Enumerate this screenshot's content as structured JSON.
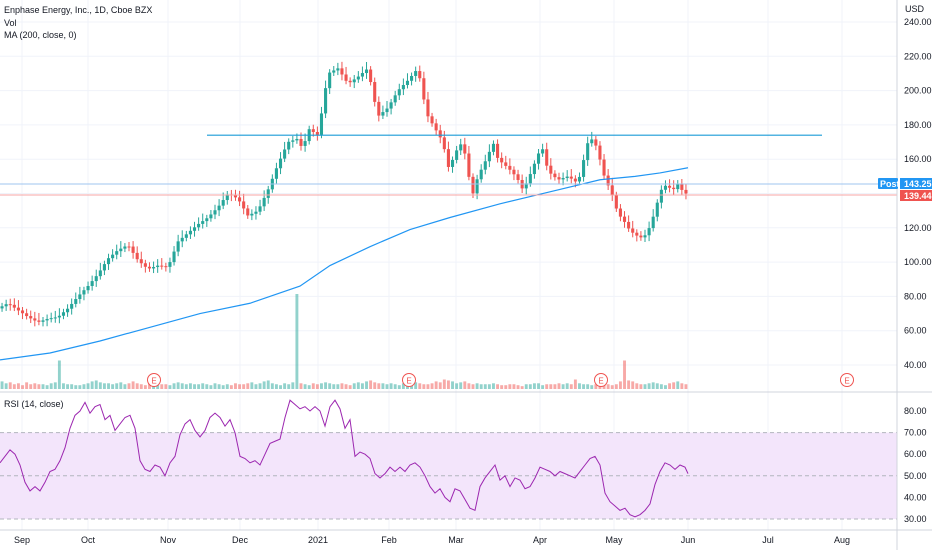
{
  "legend": {
    "title": "Enphase Energy, Inc., 1D, Cboe BZX",
    "vol": "Vol",
    "ma": "MA (200, close, 0)"
  },
  "rsi_legend": "RSI (14, close)",
  "currency": "USD",
  "colors": {
    "up": "#26a69a",
    "down": "#ef5350",
    "ma": "#2196f3",
    "hline": "#1a9bd7",
    "rsi_line": "#9c27b0",
    "rsi_band": "#f3e5fb",
    "post_tag": "#2196f3",
    "close_tag": "#ef5350",
    "earn": "#ef5350"
  },
  "labels": {
    "post_tag": "Post",
    "post_value": "143.25",
    "close_value": "139.44",
    "earnings_marker": "E"
  },
  "chart_data": {
    "type": "candlestick",
    "price_axis": {
      "ticks": [
        "240.00",
        "220.00",
        "200.00",
        "180.00",
        "160.00",
        "140.00",
        "120.00",
        "100.00",
        "80.00",
        "60.00",
        "40.00"
      ],
      "ylim": [
        30,
        245
      ]
    },
    "rsi_axis": {
      "ticks": [
        "80.00",
        "70.00",
        "60.00",
        "50.00",
        "40.00",
        "30.00"
      ],
      "ylim": [
        24,
        88
      ],
      "band": [
        30,
        70
      ]
    },
    "time_axis": [
      "Sep",
      "Oct",
      "Nov",
      "Dec",
      "2021",
      "Feb",
      "Mar",
      "Apr",
      "May",
      "Jun",
      "Jul",
      "Aug"
    ],
    "horizontal_line": 174,
    "last_post": 143.25,
    "last_close": 139.44,
    "ma200_approx": [
      [
        0,
        43
      ],
      [
        50,
        47
      ],
      [
        100,
        54
      ],
      [
        150,
        62
      ],
      [
        200,
        70
      ],
      [
        250,
        76
      ],
      [
        300,
        86
      ],
      [
        330,
        98
      ],
      [
        370,
        109
      ],
      [
        410,
        119
      ],
      [
        450,
        126
      ],
      [
        500,
        134
      ],
      [
        550,
        141
      ],
      [
        600,
        148
      ],
      [
        635,
        150
      ],
      [
        660,
        152
      ],
      [
        688,
        155
      ]
    ],
    "closes_approx": [
      [
        0,
        73
      ],
      [
        10,
        76
      ],
      [
        20,
        72
      ],
      [
        30,
        68
      ],
      [
        40,
        65
      ],
      [
        50,
        67
      ],
      [
        60,
        68
      ],
      [
        70,
        73
      ],
      [
        80,
        80
      ],
      [
        90,
        86
      ],
      [
        100,
        93
      ],
      [
        110,
        102
      ],
      [
        120,
        107
      ],
      [
        130,
        110
      ],
      [
        140,
        101
      ],
      [
        150,
        96
      ],
      [
        160,
        98
      ],
      [
        170,
        97
      ],
      [
        180,
        112
      ],
      [
        190,
        117
      ],
      [
        200,
        122
      ],
      [
        210,
        126
      ],
      [
        220,
        132
      ],
      [
        230,
        140
      ],
      [
        240,
        137
      ],
      [
        250,
        127
      ],
      [
        260,
        130
      ],
      [
        270,
        142
      ],
      [
        280,
        157
      ],
      [
        290,
        170
      ],
      [
        300,
        172
      ],
      [
        305,
        165
      ],
      [
        310,
        178
      ],
      [
        320,
        174
      ],
      [
        330,
        210
      ],
      [
        340,
        213
      ],
      [
        350,
        204
      ],
      [
        360,
        208
      ],
      [
        370,
        213
      ],
      [
        375,
        198
      ],
      [
        380,
        185
      ],
      [
        390,
        190
      ],
      [
        400,
        200
      ],
      [
        410,
        206
      ],
      [
        420,
        213
      ],
      [
        425,
        197
      ],
      [
        430,
        185
      ],
      [
        440,
        175
      ],
      [
        445,
        170
      ],
      [
        450,
        155
      ],
      [
        455,
        160
      ],
      [
        460,
        167
      ],
      [
        465,
        170
      ],
      [
        470,
        152
      ],
      [
        475,
        140
      ],
      [
        480,
        150
      ],
      [
        490,
        162
      ],
      [
        495,
        170
      ],
      [
        500,
        160
      ],
      [
        510,
        155
      ],
      [
        515,
        152
      ],
      [
        520,
        148
      ],
      [
        525,
        142
      ],
      [
        530,
        148
      ],
      [
        535,
        155
      ],
      [
        540,
        163
      ],
      [
        545,
        166
      ],
      [
        550,
        153
      ],
      [
        560,
        148
      ],
      [
        570,
        150
      ],
      [
        575,
        148
      ],
      [
        580,
        146
      ],
      [
        585,
        158
      ],
      [
        590,
        170
      ],
      [
        595,
        172
      ],
      [
        600,
        165
      ],
      [
        605,
        152
      ],
      [
        610,
        145
      ],
      [
        615,
        138
      ],
      [
        620,
        128
      ],
      [
        625,
        125
      ],
      [
        630,
        120
      ],
      [
        635,
        117
      ],
      [
        640,
        115
      ],
      [
        645,
        114
      ],
      [
        650,
        118
      ],
      [
        655,
        126
      ],
      [
        660,
        136
      ],
      [
        665,
        145
      ],
      [
        670,
        144
      ],
      [
        675,
        142
      ],
      [
        680,
        146
      ],
      [
        685,
        141
      ],
      [
        688,
        140
      ]
    ],
    "volume_approx_pct": [
      8,
      6,
      7,
      5,
      6,
      4,
      7,
      5,
      6,
      5,
      5,
      4,
      6,
      7,
      30,
      6,
      5,
      5,
      4,
      4,
      5,
      6,
      8,
      9,
      7,
      6,
      6,
      5,
      6,
      7,
      5,
      6,
      8,
      6,
      5,
      4,
      6,
      7,
      6,
      5,
      5,
      4,
      6,
      7,
      6,
      5,
      6,
      5,
      5,
      6,
      5,
      4,
      6,
      5,
      4,
      5,
      4,
      6,
      5,
      5,
      6,
      7,
      5,
      6,
      8,
      9,
      6,
      5,
      4,
      6,
      5,
      7,
      100,
      6,
      5,
      4,
      6,
      5,
      6,
      7,
      6,
      5,
      5,
      6,
      5,
      4,
      6,
      7,
      6,
      8,
      9,
      7,
      6,
      6,
      5,
      6,
      5,
      4,
      6,
      4,
      5,
      7,
      6,
      5,
      5,
      6,
      8,
      7,
      10,
      9,
      8,
      6,
      7,
      8,
      6,
      5,
      6,
      5,
      5,
      5,
      6,
      5,
      4,
      4,
      5,
      5,
      4,
      3,
      5,
      5,
      6,
      6,
      4,
      5,
      5,
      5,
      6,
      5,
      6,
      5,
      10,
      6,
      5,
      5,
      4,
      5,
      4,
      5,
      5,
      4,
      5,
      8,
      30,
      9,
      8,
      6,
      5,
      5,
      6,
      7,
      6,
      5,
      4,
      6,
      7,
      8,
      6,
      5
    ],
    "rsi_approx": [
      [
        0,
        56
      ],
      [
        5,
        59
      ],
      [
        10,
        62
      ],
      [
        15,
        60
      ],
      [
        20,
        55
      ],
      [
        25,
        47
      ],
      [
        30,
        43
      ],
      [
        35,
        45
      ],
      [
        40,
        43
      ],
      [
        45,
        47
      ],
      [
        50,
        52
      ],
      [
        55,
        53
      ],
      [
        60,
        57
      ],
      [
        65,
        63
      ],
      [
        70,
        72
      ],
      [
        75,
        78
      ],
      [
        80,
        80
      ],
      [
        85,
        84
      ],
      [
        90,
        79
      ],
      [
        95,
        82
      ],
      [
        100,
        83
      ],
      [
        105,
        76
      ],
      [
        110,
        78
      ],
      [
        115,
        71
      ],
      [
        120,
        74
      ],
      [
        125,
        77
      ],
      [
        130,
        78
      ],
      [
        135,
        72
      ],
      [
        140,
        57
      ],
      [
        145,
        53
      ],
      [
        150,
        52
      ],
      [
        155,
        55
      ],
      [
        160,
        54
      ],
      [
        165,
        50
      ],
      [
        170,
        56
      ],
      [
        175,
        59
      ],
      [
        180,
        69
      ],
      [
        185,
        74
      ],
      [
        190,
        76
      ],
      [
        195,
        71
      ],
      [
        200,
        68
      ],
      [
        205,
        71
      ],
      [
        210,
        77
      ],
      [
        215,
        79
      ],
      [
        220,
        77
      ],
      [
        225,
        73
      ],
      [
        230,
        76
      ],
      [
        235,
        70
      ],
      [
        240,
        59
      ],
      [
        245,
        58
      ],
      [
        250,
        56
      ],
      [
        255,
        57
      ],
      [
        260,
        55
      ],
      [
        265,
        60
      ],
      [
        270,
        65
      ],
      [
        275,
        66
      ],
      [
        280,
        67
      ],
      [
        285,
        77
      ],
      [
        290,
        85
      ],
      [
        295,
        83
      ],
      [
        300,
        81
      ],
      [
        305,
        82
      ],
      [
        310,
        80
      ],
      [
        315,
        82
      ],
      [
        320,
        80
      ],
      [
        325,
        73
      ],
      [
        330,
        82
      ],
      [
        335,
        85
      ],
      [
        340,
        81
      ],
      [
        345,
        72
      ],
      [
        350,
        76
      ],
      [
        355,
        59
      ],
      [
        360,
        61
      ],
      [
        365,
        60
      ],
      [
        370,
        58
      ],
      [
        375,
        51
      ],
      [
        380,
        49
      ],
      [
        385,
        51
      ],
      [
        390,
        54
      ],
      [
        395,
        52
      ],
      [
        400,
        54
      ],
      [
        405,
        52
      ],
      [
        410,
        55
      ],
      [
        415,
        56
      ],
      [
        420,
        54
      ],
      [
        425,
        50
      ],
      [
        430,
        45
      ],
      [
        435,
        42
      ],
      [
        440,
        44
      ],
      [
        445,
        40
      ],
      [
        450,
        38
      ],
      [
        455,
        44
      ],
      [
        460,
        43
      ],
      [
        465,
        39
      ],
      [
        470,
        35
      ],
      [
        475,
        34
      ],
      [
        480,
        45
      ],
      [
        485,
        49
      ],
      [
        490,
        52
      ],
      [
        495,
        55
      ],
      [
        500,
        48
      ],
      [
        505,
        50
      ],
      [
        510,
        45
      ],
      [
        515,
        49
      ],
      [
        520,
        48
      ],
      [
        525,
        44
      ],
      [
        530,
        45
      ],
      [
        535,
        49
      ],
      [
        540,
        54
      ],
      [
        545,
        53
      ],
      [
        550,
        52
      ],
      [
        555,
        50
      ],
      [
        560,
        52
      ],
      [
        565,
        51
      ],
      [
        570,
        50
      ],
      [
        575,
        49
      ],
      [
        580,
        52
      ],
      [
        585,
        55
      ],
      [
        590,
        58
      ],
      [
        595,
        59
      ],
      [
        600,
        55
      ],
      [
        605,
        42
      ],
      [
        610,
        38
      ],
      [
        615,
        36
      ],
      [
        620,
        34
      ],
      [
        625,
        35
      ],
      [
        630,
        32
      ],
      [
        635,
        31
      ],
      [
        640,
        32
      ],
      [
        645,
        34
      ],
      [
        650,
        37
      ],
      [
        655,
        46
      ],
      [
        660,
        52
      ],
      [
        665,
        56
      ],
      [
        670,
        55
      ],
      [
        675,
        53
      ],
      [
        680,
        55
      ],
      [
        685,
        54
      ],
      [
        688,
        51
      ]
    ]
  }
}
